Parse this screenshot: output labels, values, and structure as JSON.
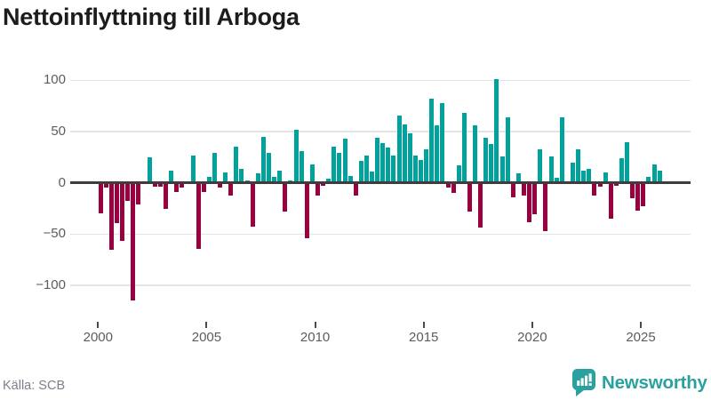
{
  "title": "Nettoinflyttning till Arboga",
  "source": "Källa: SCB",
  "logo": {
    "text": "Newsworthy"
  },
  "colors": {
    "positive": "#00a29b",
    "negative": "#990040",
    "logo": "#2aa19e",
    "grid": "#e4e4e4",
    "axis": "#3d3d3d",
    "tick_text": "#5c5c5c",
    "title": "#1c1c1c",
    "source_text": "#7b808a"
  },
  "chart_data": {
    "type": "bar",
    "title": "Nettoinflyttning till Arboga",
    "frequency": "quarterly",
    "start_period": "2000 Q1",
    "end_period": "2025 Q4",
    "x_tick_labels": [
      "2000",
      "2005",
      "2010",
      "2015",
      "2020",
      "2025"
    ],
    "y_ticks": [
      100,
      50,
      0,
      -50,
      -100
    ],
    "ylim": [
      -125,
      110
    ],
    "grid": true,
    "legend": "none",
    "positive_color": "#00a29b",
    "negative_color": "#990040",
    "values": [
      -30,
      -5,
      -65,
      -39,
      -57,
      -18,
      -115,
      -21,
      0,
      25,
      -4,
      -4,
      -25,
      12,
      -9,
      -5,
      0,
      27,
      -64,
      -9,
      6,
      29,
      -5,
      10,
      -12,
      35,
      14,
      2,
      -43,
      9,
      45,
      29,
      6,
      12,
      -28,
      2,
      52,
      31,
      -54,
      18,
      -12,
      -3,
      4,
      35,
      29,
      43,
      7,
      -12,
      21,
      27,
      11,
      44,
      39,
      34,
      27,
      66,
      57,
      48,
      27,
      22,
      33,
      82,
      56,
      78,
      -5,
      -10,
      17,
      68,
      -28,
      56,
      -44,
      44,
      38,
      101,
      26,
      64,
      -14,
      9,
      -12,
      -38,
      -31,
      33,
      -47,
      26,
      5,
      64,
      0,
      20,
      33,
      12,
      14,
      -12,
      -4,
      10,
      -35,
      -3,
      24,
      40,
      -15,
      -27,
      -23,
      6,
      18,
      12
    ]
  }
}
